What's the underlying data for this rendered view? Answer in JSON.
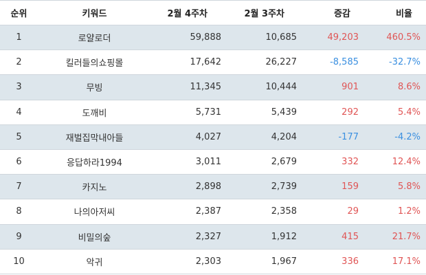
{
  "headers": {
    "rank": "순위",
    "keyword": "키워드",
    "week4": "2월 4주차",
    "week3": "2월 3주차",
    "change": "증감",
    "rate": "비율"
  },
  "rows": [
    {
      "rank": "1",
      "keyword": "로얄로더",
      "week4": "59,888",
      "week3": "10,685",
      "change": "49,203",
      "rate": "460.5%",
      "dir": "pos"
    },
    {
      "rank": "2",
      "keyword": "킬러들의쇼핑몰",
      "week4": "17,642",
      "week3": "26,227",
      "change": "-8,585",
      "rate": "-32.7%",
      "dir": "neg"
    },
    {
      "rank": "3",
      "keyword": "무빙",
      "week4": "11,345",
      "week3": "10,444",
      "change": "901",
      "rate": "8.6%",
      "dir": "pos"
    },
    {
      "rank": "4",
      "keyword": "도깨비",
      "week4": "5,731",
      "week3": "5,439",
      "change": "292",
      "rate": "5.4%",
      "dir": "pos"
    },
    {
      "rank": "5",
      "keyword": "재벌집막내아들",
      "week4": "4,027",
      "week3": "4,204",
      "change": "-177",
      "rate": "-4.2%",
      "dir": "neg"
    },
    {
      "rank": "6",
      "keyword": "응답하라1994",
      "week4": "3,011",
      "week3": "2,679",
      "change": "332",
      "rate": "12.4%",
      "dir": "pos"
    },
    {
      "rank": "7",
      "keyword": "카지노",
      "week4": "2,898",
      "week3": "2,739",
      "change": "159",
      "rate": "5.8%",
      "dir": "pos"
    },
    {
      "rank": "8",
      "keyword": "나의아저씨",
      "week4": "2,387",
      "week3": "2,358",
      "change": "29",
      "rate": "1.2%",
      "dir": "pos"
    },
    {
      "rank": "9",
      "keyword": "비밀의숲",
      "week4": "2,327",
      "week3": "1,912",
      "change": "415",
      "rate": "21.7%",
      "dir": "pos"
    },
    {
      "rank": "10",
      "keyword": "악귀",
      "week4": "2,303",
      "week3": "1,967",
      "change": "336",
      "rate": "17.1%",
      "dir": "pos"
    }
  ],
  "colors": {
    "positive": "#e05555",
    "negative": "#3a8fe0",
    "shade": "#dde6ec"
  }
}
